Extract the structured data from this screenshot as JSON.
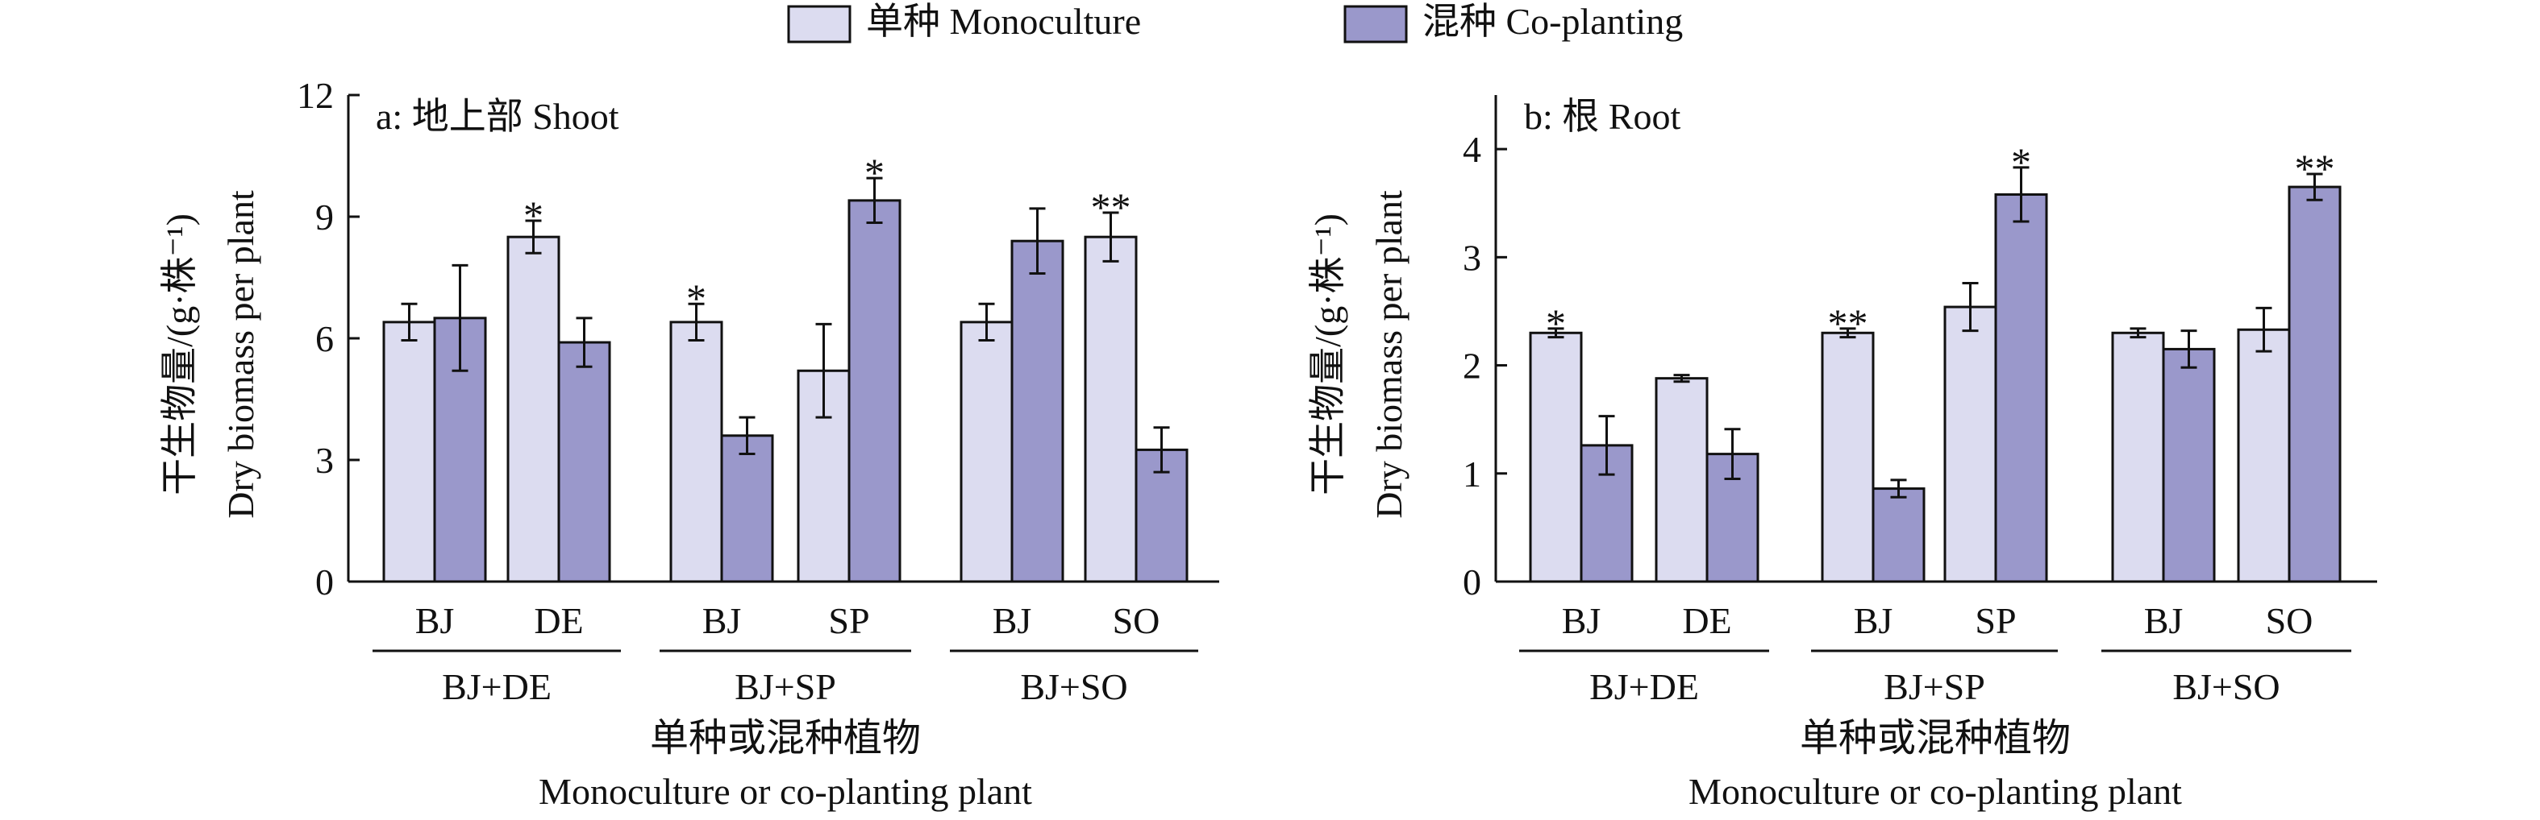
{
  "legend": {
    "items": [
      {
        "label": "单种 Monoculture",
        "color": "#dcdcf0"
      },
      {
        "label": "混种 Co-planting",
        "color": "#9a98cb"
      }
    ],
    "placement": "top-center"
  },
  "chart_data": [
    {
      "type": "bar",
      "panel_label": "a: 地上部 Shoot",
      "ylabel_cn": "干生物量/(g·株⁻¹)",
      "ylabel_en": "Dry biomass per plant",
      "xlabel_cn": "单种或混种植物",
      "xlabel_en": "Monoculture or co-planting plant",
      "ylim": [
        0,
        12
      ],
      "yticks": [
        0,
        3,
        6,
        9,
        12
      ],
      "groups": [
        {
          "label": "BJ+DE",
          "plants": [
            {
              "label": "BJ",
              "mono": 6.4,
              "mono_err": 0.45,
              "co": 6.5,
              "co_err": 1.3,
              "sig": ""
            },
            {
              "label": "DE",
              "mono": 8.5,
              "mono_err": 0.4,
              "co": 5.9,
              "co_err": 0.6,
              "sig": "*"
            }
          ]
        },
        {
          "label": "BJ+SP",
          "plants": [
            {
              "label": "BJ",
              "mono": 6.4,
              "mono_err": 0.45,
              "co": 3.6,
              "co_err": 0.45,
              "sig": "*"
            },
            {
              "label": "SP",
              "mono": 5.2,
              "mono_err": 1.15,
              "co": 9.4,
              "co_err": 0.55,
              "sig": "*"
            }
          ]
        },
        {
          "label": "BJ+SO",
          "plants": [
            {
              "label": "BJ",
              "mono": 6.4,
              "mono_err": 0.45,
              "co": 8.4,
              "co_err": 0.8,
              "sig": ""
            },
            {
              "label": "SO",
              "mono": 8.5,
              "mono_err": 0.6,
              "co": 3.25,
              "co_err": 0.55,
              "sig": "**"
            }
          ]
        }
      ]
    },
    {
      "type": "bar",
      "panel_label": "b: 根 Root",
      "ylabel_cn": "干生物量/(g·株⁻¹)",
      "ylabel_en": "Dry biomass per plant",
      "xlabel_cn": "单种或混种植物",
      "xlabel_en": "Monoculture or co-planting plant",
      "ylim": [
        0,
        4.5
      ],
      "yticks": [
        0,
        1,
        2,
        3,
        4
      ],
      "groups": [
        {
          "label": "BJ+DE",
          "plants": [
            {
              "label": "BJ",
              "mono": 2.3,
              "mono_err": 0.04,
              "co": 1.26,
              "co_err": 0.27,
              "sig": "*"
            },
            {
              "label": "DE",
              "mono": 1.88,
              "mono_err": 0.03,
              "co": 1.18,
              "co_err": 0.23,
              "sig": ""
            }
          ]
        },
        {
          "label": "BJ+SP",
          "plants": [
            {
              "label": "BJ",
              "mono": 2.3,
              "mono_err": 0.04,
              "co": 0.86,
              "co_err": 0.08,
              "sig": "**"
            },
            {
              "label": "SP",
              "mono": 2.54,
              "mono_err": 0.22,
              "co": 3.58,
              "co_err": 0.25,
              "sig": "*"
            }
          ]
        },
        {
          "label": "BJ+SO",
          "plants": [
            {
              "label": "BJ",
              "mono": 2.3,
              "mono_err": 0.04,
              "co": 2.15,
              "co_err": 0.17,
              "sig": ""
            },
            {
              "label": "SO",
              "mono": 2.33,
              "mono_err": 0.2,
              "co": 3.65,
              "co_err": 0.12,
              "sig": "**"
            }
          ]
        }
      ]
    }
  ]
}
